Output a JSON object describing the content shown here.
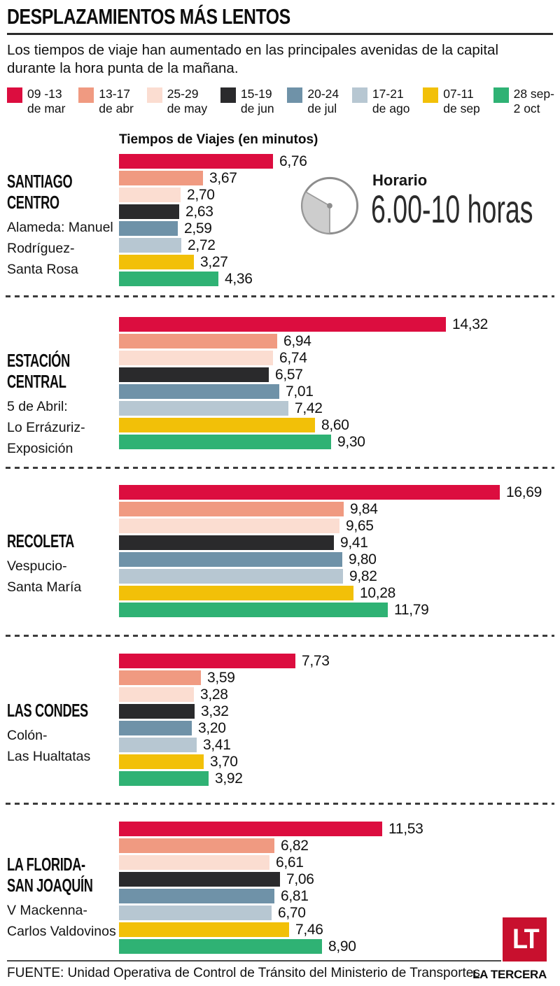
{
  "title": "DESPLAZAMIENTOS MÁS LENTOS",
  "subtitle": "Los tiempos de viaje han aumentado en las principales avenidas de la capital durante la hora punta de la mañana.",
  "legend": [
    {
      "range": "09 -13",
      "period": "de mar",
      "color": "#dc0d3f"
    },
    {
      "range": "13-17",
      "period": "de abr",
      "color": "#f09a81"
    },
    {
      "range": "25-29",
      "period": "de may",
      "color": "#fbddd1"
    },
    {
      "range": "15-19",
      "period": "de jun",
      "color": "#2a2a2c"
    },
    {
      "range": "20-24",
      "period": "de jul",
      "color": "#6f92a8"
    },
    {
      "range": "17-21",
      "period": "de ago",
      "color": "#b7c7d2"
    },
    {
      "range": "07-11",
      "period": "de sep",
      "color": "#f2c008"
    },
    {
      "range": "28 sep-",
      "period": "2 oct",
      "color": "#2fb274"
    }
  ],
  "clock": {
    "label": "Horario",
    "value": "6.00-10 horas"
  },
  "footer": {
    "source": "FUENTE: Unidad Operativa de Control de Tránsito  del Ministerio de Transportes.",
    "brand": "LA TERCERA",
    "logo": "LT",
    "logo_color": "#c8102e"
  },
  "chart_data": {
    "type": "bar",
    "orientation": "horizontal",
    "title": "Tiempos de Viajes (en minutos)",
    "unit": "minutos",
    "decimal_separator": ",",
    "xlim": [
      0,
      17
    ],
    "grid": false,
    "legend_position": "top",
    "periods": [
      "09-13 de mar",
      "13-17 de abr",
      "25-29 de may",
      "15-19 de jun",
      "20-24 de jul",
      "17-21 de ago",
      "07-11 de sep",
      "28 sep-2 oct"
    ],
    "colors": [
      "#dc0d3f",
      "#f09a81",
      "#fbddd1",
      "#2a2a2c",
      "#6f92a8",
      "#b7c7d2",
      "#f2c008",
      "#2fb274"
    ],
    "sections": [
      {
        "name": "SANTIAGO CENTRO",
        "route": "Alameda: Manuel\nRodríguez-\nSanta Rosa",
        "values": [
          6.76,
          3.67,
          2.7,
          2.63,
          2.59,
          2.72,
          3.27,
          4.36
        ]
      },
      {
        "name": "ESTACIÓN CENTRAL",
        "route": "5 de Abril:\nLo Errázuriz-\nExposición",
        "values": [
          14.32,
          6.94,
          6.74,
          6.57,
          7.01,
          7.42,
          8.6,
          9.3
        ]
      },
      {
        "name": "RECOLETA",
        "route": "Vespucio-\nSanta María",
        "values": [
          16.69,
          9.84,
          9.65,
          9.41,
          9.8,
          9.82,
          10.28,
          11.79
        ]
      },
      {
        "name": "LAS CONDES",
        "route": "Colón-\nLas Hualtatas",
        "values": [
          7.73,
          3.59,
          3.28,
          3.32,
          3.2,
          3.41,
          3.7,
          3.92
        ]
      },
      {
        "name": "LA FLORIDA-\nSAN JOAQUÍN",
        "route": "V Mackenna-\nCarlos Valdovinos",
        "values": [
          11.53,
          6.82,
          6.61,
          7.06,
          6.81,
          6.7,
          7.46,
          8.9
        ]
      }
    ]
  }
}
